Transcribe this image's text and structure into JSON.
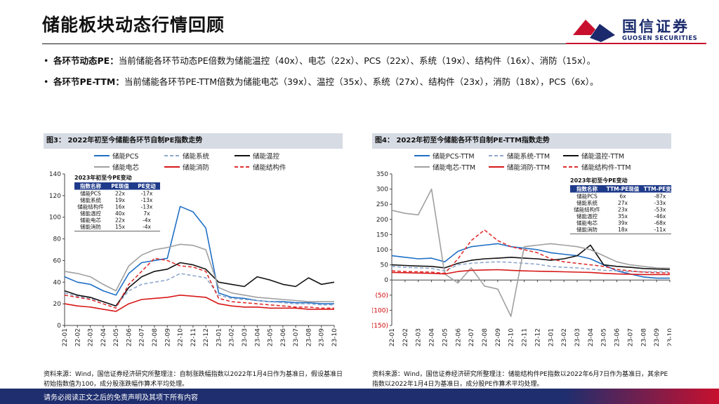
{
  "page": {
    "title": "储能板块动态行情回顾",
    "logo_cn": "国信证券",
    "logo_en": "GUOSEN SECURITIES",
    "footer": "请务必阅读正文之后的免责声明及其项下所有内容"
  },
  "bullets": [
    {
      "label": "各环节动态PE：",
      "text": "当前储能各环节动态PE倍数为储能温控（40x）、电芯（22x）、PCS（22x）、系统（19x）、结构件（16x）、消防（15x）。"
    },
    {
      "label": "各环节PE-TTM：",
      "text": "当前储能各环节PE-TTM倍数为储能电芯（39x）、温控（35x）、系统（27x）、结构件（23x），消防（18x），PCS（6x）。"
    }
  ],
  "colors": {
    "blue": "#1f6fc5",
    "lightblue": "#8fa8cc",
    "black": "#111111",
    "gray": "#a0a0a0",
    "red": "#d71818",
    "darkred": "#e03030"
  },
  "chart_data": [
    {
      "type": "line",
      "title": "图3：  2022年初至今储能各环节自制PE指数走势",
      "x": [
        "22-01",
        "22-02",
        "22-03",
        "22-04",
        "22-05",
        "22-06",
        "22-07",
        "22-08",
        "22-09",
        "22-10",
        "22-11",
        "22-12",
        "23-01",
        "23-02",
        "23-03",
        "23-04",
        "23-05",
        "23-06",
        "23-07",
        "23-08",
        "23-09",
        "23-10"
      ],
      "ylim": [
        0,
        140
      ],
      "yticks": [
        "0",
        "20",
        "40",
        "60",
        "80",
        "100",
        "120",
        "140"
      ],
      "series": [
        {
          "name": "储能PCS",
          "color": "#1f6fc5",
          "dash": "",
          "values": [
            45,
            40,
            38,
            32,
            28,
            48,
            58,
            60,
            62,
            110,
            105,
            90,
            30,
            26,
            25,
            23,
            22,
            22,
            21,
            21,
            20,
            20
          ]
        },
        {
          "name": "储能系统",
          "color": "#8fa8cc",
          "dash": "5,3",
          "values": [
            30,
            27,
            25,
            22,
            18,
            32,
            38,
            40,
            42,
            48,
            46,
            44,
            28,
            25,
            24,
            23,
            22,
            21,
            20,
            20,
            19,
            19
          ]
        },
        {
          "name": "储能温控",
          "color": "#111111",
          "dash": "",
          "values": [
            32,
            28,
            26,
            22,
            18,
            35,
            45,
            50,
            52,
            58,
            56,
            52,
            40,
            38,
            36,
            45,
            42,
            38,
            36,
            44,
            38,
            40
          ]
        },
        {
          "name": "储能电芯",
          "color": "#a0a0a0",
          "dash": "",
          "values": [
            50,
            48,
            45,
            38,
            32,
            55,
            65,
            70,
            72,
            75,
            74,
            70,
            35,
            30,
            28,
            26,
            25,
            24,
            23,
            22,
            22,
            22
          ]
        },
        {
          "name": "储能消防",
          "color": "#d71818",
          "dash": "",
          "values": [
            20,
            18,
            17,
            15,
            13,
            20,
            24,
            25,
            26,
            28,
            27,
            26,
            20,
            18,
            17,
            17,
            16,
            16,
            16,
            15,
            15,
            15
          ]
        },
        {
          "name": "储能结构件",
          "color": "#e03030",
          "dash": "5,3",
          "values": [
            28,
            26,
            24,
            20,
            16,
            38,
            50,
            62,
            60,
            55,
            54,
            50,
            25,
            22,
            21,
            20,
            19,
            18,
            17,
            17,
            16,
            16
          ]
        }
      ],
      "table": {
        "caption": "2023年初至今PE变动",
        "headers": [
          "指数名称",
          "PE现值",
          "PE变动"
        ],
        "rows": [
          [
            "储能PCS",
            "22x",
            "-17x"
          ],
          [
            "储能系统",
            "19x",
            "-13x"
          ],
          [
            "储能结构件",
            "16x",
            "-13x"
          ],
          [
            "储能温控",
            "40x",
            "7x"
          ],
          [
            "储能电芯",
            "22x",
            "-4x"
          ],
          [
            "储能消防",
            "15x",
            "-4x"
          ]
        ]
      },
      "source": "资料来源：Wind，国信证券经济研究所整理注：自制涨跌幅指数以2022年1月4日作为基准日，假设基准日初始指数值为100，成分股涨跌幅作算术平均处理。"
    },
    {
      "type": "line",
      "title": "图4：  2022年初至今储能各环节自制PE-TTM指数走势",
      "x": [
        "22-01",
        "22-02",
        "22-03",
        "22-04",
        "22-05",
        "22-06",
        "22-07",
        "22-08",
        "22-09",
        "22-10",
        "22-11",
        "22-12",
        "23-01",
        "23-02",
        "23-03",
        "23-04",
        "23-05",
        "23-06",
        "23-07",
        "23-08",
        "23-09",
        "23-10"
      ],
      "ylim": [
        -150,
        350
      ],
      "yticks": [
        "(150)",
        "(100)",
        "(50)",
        "0",
        "50",
        "100",
        "150",
        "200",
        "250",
        "300",
        "350"
      ],
      "series": [
        {
          "name": "储能PCS-TTM",
          "color": "#1f6fc5",
          "dash": "",
          "values": [
            80,
            75,
            70,
            72,
            60,
            95,
            110,
            115,
            120,
            110,
            105,
            100,
            90,
            85,
            80,
            70,
            50,
            30,
            20,
            10,
            6,
            6
          ]
        },
        {
          "name": "储能系统-TTM",
          "color": "#8fa8cc",
          "dash": "5,3",
          "values": [
            45,
            42,
            40,
            38,
            30,
            50,
            55,
            58,
            60,
            58,
            55,
            52,
            45,
            42,
            40,
            36,
            32,
            30,
            28,
            27,
            27,
            27
          ]
        },
        {
          "name": "储能温控-TTM",
          "color": "#111111",
          "dash": "",
          "values": [
            50,
            48,
            46,
            45,
            40,
            55,
            65,
            70,
            72,
            75,
            72,
            70,
            65,
            70,
            80,
            115,
            50,
            45,
            42,
            38,
            36,
            35
          ]
        },
        {
          "name": "储能电芯-TTM",
          "color": "#a0a0a0",
          "dash": "",
          "values": [
            230,
            220,
            215,
            300,
            20,
            -10,
            40,
            -20,
            -30,
            -120,
            110,
            115,
            120,
            115,
            110,
            100,
            80,
            60,
            50,
            45,
            40,
            39
          ]
        },
        {
          "name": "储能消防-TTM",
          "color": "#d71818",
          "dash": "",
          "values": [
            25,
            24,
            23,
            22,
            20,
            28,
            32,
            33,
            34,
            32,
            30,
            29,
            28,
            27,
            26,
            25,
            22,
            20,
            19,
            18,
            18,
            18
          ]
        },
        {
          "name": "储能结构件-TTM",
          "color": "#e03030",
          "dash": "5,3",
          "values": [
            30,
            28,
            27,
            26,
            22,
            70,
            130,
            165,
            130,
            110,
            100,
            90,
            70,
            60,
            55,
            50,
            45,
            35,
            30,
            26,
            24,
            23
          ]
        }
      ],
      "table": {
        "caption": "2023年初至今PE变动",
        "headers": [
          "指数名称",
          "TTM-PE现值",
          "TTM-PE变动"
        ],
        "rows": [
          [
            "储能PCS",
            "6x",
            "-87x"
          ],
          [
            "储能系统",
            "27x",
            "-33x"
          ],
          [
            "储能结构件",
            "23x",
            "-53x"
          ],
          [
            "储能温控",
            "35x",
            "-46x"
          ],
          [
            "储能电芯",
            "39x",
            "-68x"
          ],
          [
            "储能消防",
            "18x",
            "-11x"
          ]
        ]
      },
      "source": "资料来源：Wind，国信证券经济研究所整理注：储能结构件PE指数以2022年6月7日作为基准日，其余PE指数以2022年1月4日为基准日，成分股PE作算术平均处理。"
    }
  ]
}
